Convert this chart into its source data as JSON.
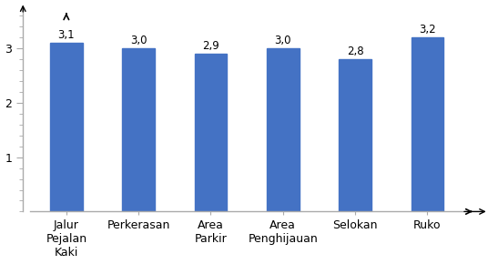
{
  "categories": [
    "Jalur\nPejalan\nKaki",
    "Perkerasan",
    "Area\nParkir",
    "Area\nPenghijauan",
    "Selokan",
    "Ruko"
  ],
  "values": [
    3.1,
    3.0,
    2.9,
    3.0,
    2.8,
    3.2
  ],
  "bar_labels": [
    "3,1",
    "3,0",
    "2,9",
    "3,0",
    "2,8",
    "3,2"
  ],
  "bar_color": "#4472C4",
  "ylim": [
    0,
    3.7
  ],
  "yticks": [
    1,
    2,
    3
  ],
  "ytick_minor_interval": 0.2,
  "background_color": "#ffffff",
  "label_fontsize": 8.5,
  "tick_fontsize": 9,
  "bar_width": 0.45,
  "spine_color": "#aaaaaa"
}
